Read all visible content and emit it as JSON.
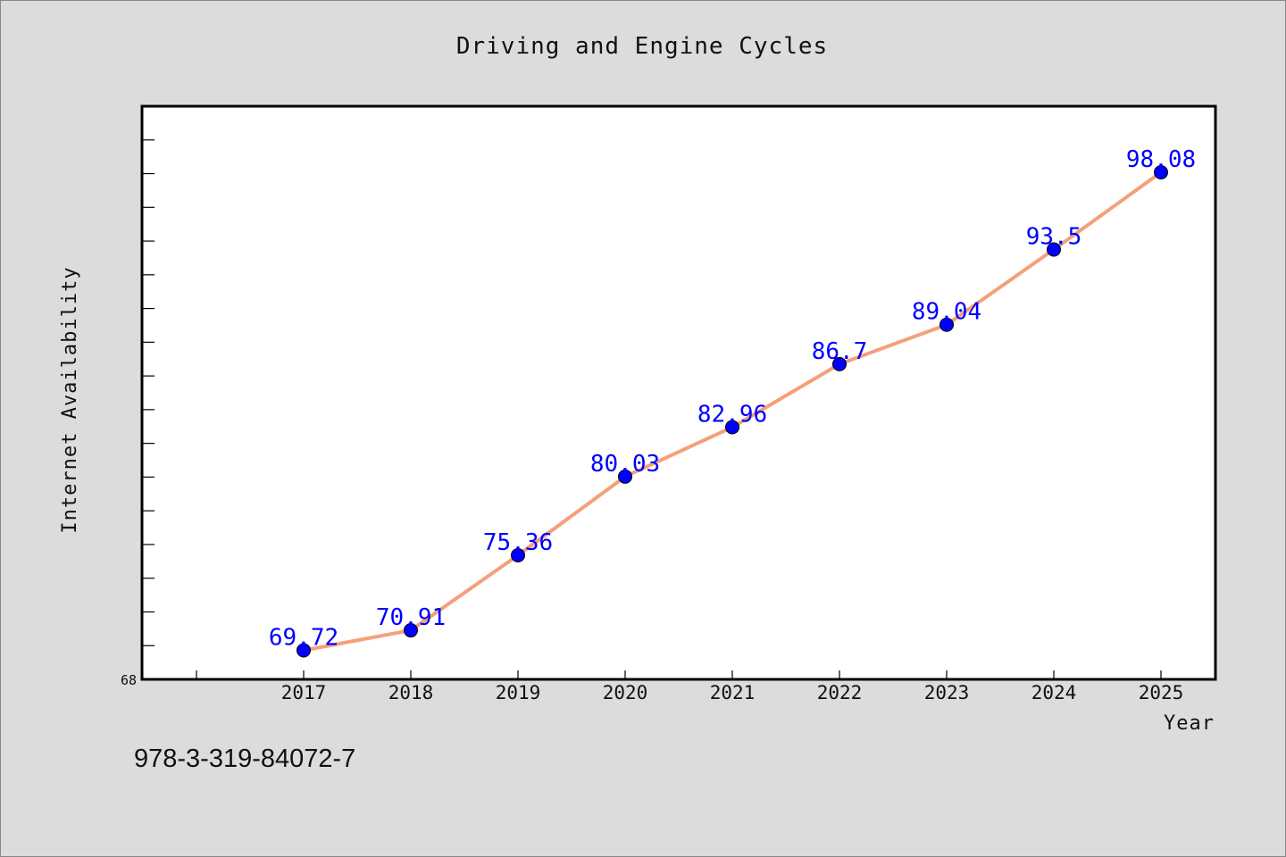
{
  "chart_data": {
    "type": "line",
    "title": "Driving and Engine Cycles",
    "xlabel": "Year",
    "ylabel": "Internet Availability",
    "categories": [
      "2017",
      "2018",
      "2019",
      "2020",
      "2021",
      "2022",
      "2023",
      "2024",
      "2025"
    ],
    "series": [
      {
        "values": [
          69.72,
          70.91,
          75.36,
          80.03,
          82.96,
          86.7,
          89.04,
          93.5,
          98.08
        ]
      }
    ],
    "ylim": [
      68,
      102
    ],
    "y_tick_labels": [
      "68"
    ],
    "line_color": "#f4a07a",
    "marker_color": "#0000ff",
    "label_color": "#0000ff",
    "grid": false,
    "legend": "none"
  },
  "footer": {
    "code": "978-3-319-84072-7"
  }
}
